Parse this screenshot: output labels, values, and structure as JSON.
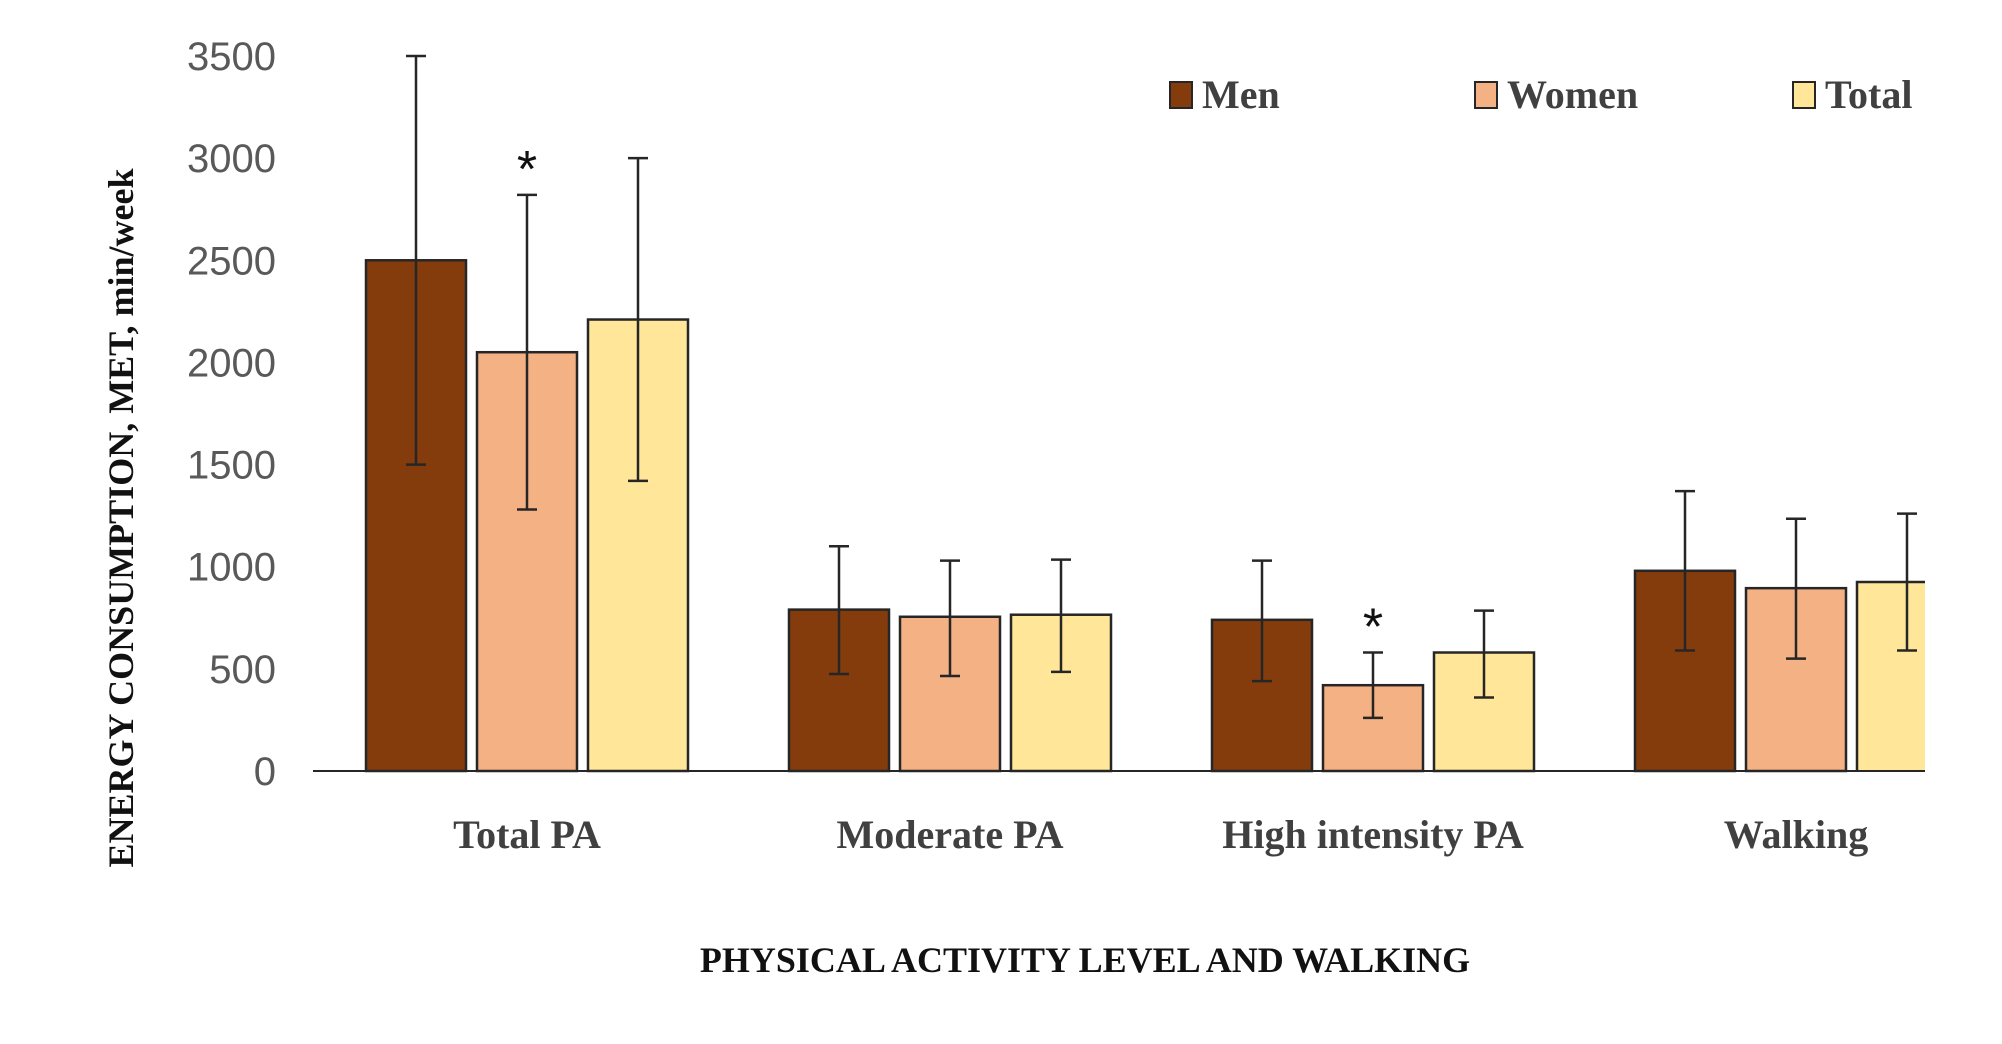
{
  "chart_data": {
    "type": "bar",
    "title": "",
    "xlabel": "PHYSICAL ACTIVITY LEVEL AND WALKING",
    "ylabel": "ENERGY CONSUMPTION, MET, min/week",
    "ylim": [
      0,
      3500
    ],
    "yticks": [
      0,
      500,
      1000,
      1500,
      2000,
      2500,
      3000,
      3500
    ],
    "grid": false,
    "legend_position": "top-right",
    "categories": [
      "Total PA",
      "Moderate PA",
      "High intensity PA",
      "Walking"
    ],
    "series": [
      {
        "name": "Men",
        "color": "#843C0C",
        "values": [
          2500,
          790,
          740,
          980
        ],
        "error_upper": [
          3500,
          1100,
          1030,
          1370
        ],
        "error_lower": [
          1500,
          475,
          440,
          590
        ],
        "significance": [
          false,
          false,
          false,
          false
        ]
      },
      {
        "name": "Women",
        "color": "#F4B183",
        "values": [
          2050,
          755,
          420,
          895
        ],
        "error_upper": [
          2820,
          1030,
          580,
          1235
        ],
        "error_lower": [
          1280,
          465,
          260,
          550
        ],
        "significance": [
          true,
          false,
          true,
          false
        ]
      },
      {
        "name": "Total",
        "color": "#FFE699",
        "values": [
          2210,
          765,
          580,
          925
        ],
        "error_upper": [
          3000,
          1035,
          785,
          1260
        ],
        "error_lower": [
          1420,
          485,
          360,
          590
        ],
        "significance": [
          false,
          false,
          false,
          false
        ]
      }
    ],
    "annotations": [
      {
        "text": "*",
        "series": "Women",
        "category": "Total PA"
      },
      {
        "text": "*",
        "series": "Women",
        "category": "High intensity PA"
      }
    ]
  }
}
